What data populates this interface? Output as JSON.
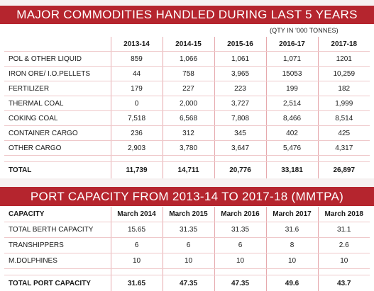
{
  "commodities": {
    "title": "MAJOR COMMODITIES HANDLED DURING LAST 5 YEARS",
    "unit": "(QTY IN '000 TONNES)",
    "headers": [
      "",
      "2013-14",
      "2014-15",
      "2015-16",
      "2016-17",
      "2017-18"
    ],
    "rows": [
      {
        "label": "POL & OTHER LIQUID",
        "values": [
          "859",
          "1,066",
          "1,061",
          "1,071",
          "1201"
        ]
      },
      {
        "label": "IRON ORE/ I.O.PELLETS",
        "values": [
          "44",
          "758",
          "3,965",
          "15053",
          "10,259"
        ]
      },
      {
        "label": "FERTILIZER",
        "values": [
          "179",
          "227",
          "223",
          "199",
          "182"
        ]
      },
      {
        "label": "THERMAL COAL",
        "values": [
          "0",
          "2,000",
          "3,727",
          "2,514",
          "1,999"
        ]
      },
      {
        "label": "COKING COAL",
        "values": [
          "7,518",
          "6,568",
          "7,808",
          "8,466",
          "8,514"
        ]
      },
      {
        "label": "CONTAINER CARGO",
        "values": [
          "236",
          "312",
          "345",
          "402",
          "425"
        ]
      },
      {
        "label": "OTHER CARGO",
        "values": [
          "2,903",
          "3,780",
          "3,647",
          "5,476",
          "4,317"
        ]
      }
    ],
    "total": {
      "label": "TOTAL",
      "values": [
        "11,739",
        "14,711",
        "20,776",
        "33,181",
        "26,897"
      ]
    }
  },
  "capacity": {
    "title": "PORT CAPACITY FROM 2013-14 TO 2017-18 (MMTPA)",
    "headers": [
      "CAPACITY",
      "March 2014",
      "March 2015",
      "March 2016",
      "March 2017",
      "March 2018"
    ],
    "rows": [
      {
        "label": "TOTAL BERTH CAPACITY",
        "values": [
          "15.65",
          "31.35",
          "31.35",
          "31.6",
          "31.1"
        ]
      },
      {
        "label": "TRANSHIPPERS",
        "values": [
          "6",
          "6",
          "6",
          "8",
          "2.6"
        ]
      },
      {
        "label": "M.DOLPHINES",
        "values": [
          "10",
          "10",
          "10",
          "10",
          "10"
        ]
      }
    ],
    "total": {
      "label": "TOTAL PORT CAPACITY",
      "values": [
        "31.65",
        "47.35",
        "47.35",
        "49.6",
        "43.7"
      ]
    }
  }
}
